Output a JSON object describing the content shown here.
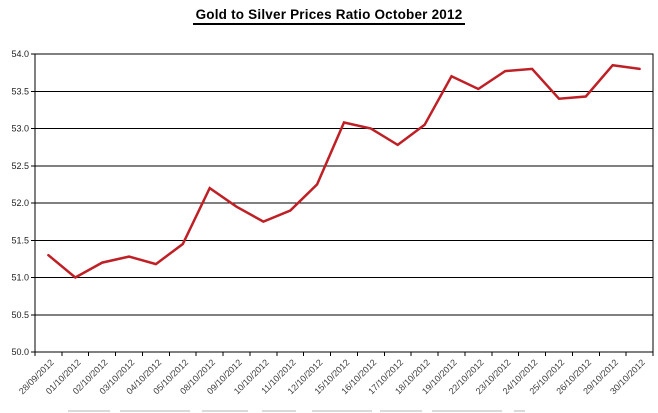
{
  "chart_data": {
    "type": "line",
    "title": "Gold to Silver Prices Ratio October 2012",
    "categories": [
      "28/09/2012",
      "01/10/2012",
      "02/10/2012",
      "03/10/2012",
      "04/10/2012",
      "05/10/2012",
      "08/10/2012",
      "09/10/2012",
      "10/10/2012",
      "11/10/2012",
      "12/10/2012",
      "15/10/2012",
      "16/10/2012",
      "17/10/2012",
      "18/10/2012",
      "19/10/2012",
      "22/10/2012",
      "23/10/2012",
      "24/10/2012",
      "25/10/2012",
      "26/10/2012",
      "29/10/2012",
      "30/10/2012"
    ],
    "values": [
      51.3,
      51.0,
      51.2,
      51.28,
      51.18,
      51.45,
      52.2,
      51.95,
      51.75,
      51.9,
      52.25,
      53.08,
      53.0,
      52.78,
      53.05,
      53.7,
      53.53,
      53.77,
      53.8,
      53.4,
      53.43,
      53.85,
      53.8
    ],
    "xlabel": "",
    "ylabel": "",
    "ylim": [
      50.0,
      54.0
    ],
    "ytick_step": 0.5,
    "ytick_labels": [
      "54.0",
      "53.5",
      "53.0",
      "52.5",
      "52.0",
      "51.5",
      "51.0",
      "50.5",
      "50.0"
    ],
    "grid": true,
    "legend": false,
    "series_color": "#be2026",
    "grid_color": "#000000",
    "axis_color": "#000000",
    "ytick_text_color": "#1f1f1f",
    "xtick_text_color": "#3d3d3d"
  }
}
